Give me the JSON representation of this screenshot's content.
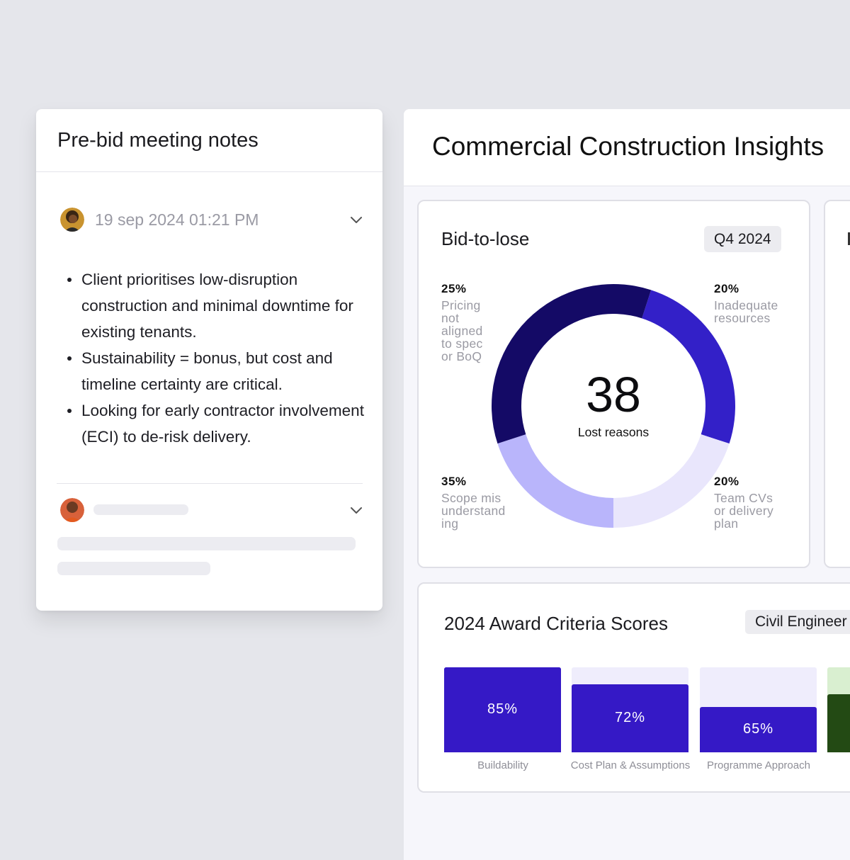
{
  "notes": {
    "title": "Pre-bid meeting notes",
    "entry1": {
      "timestamp": "19 sep 2024 01:21 PM",
      "bullets": [
        "Client prioritises low-disruption construction and minimal downtime for existing tenants.",
        "Sustainability = bonus, but cost and timeline certainty are critical.",
        "Looking for early contractor involvement (ECI) to de-risk delivery."
      ]
    }
  },
  "insights": {
    "title": "Commercial Construction Insights",
    "donut": {
      "title": "Bid-to-lose",
      "period": "Q4 2024",
      "center_value": "38",
      "center_label": "Lost reasons"
    },
    "bars": {
      "title": "2024 Award Criteria Scores",
      "filter": "Civil Engineer"
    }
  },
  "chart_data": [
    {
      "type": "pie",
      "title": "Bid-to-lose",
      "slices": [
        {
          "label": "Pricing not aligned to spec or BoQ",
          "value": 25,
          "display": "25%",
          "color": "#3320c8"
        },
        {
          "label": "Inadequate resources",
          "value": 20,
          "display": "20%",
          "color": "#e9e6fc"
        },
        {
          "label": "Team CVs or delivery plan",
          "value": 20,
          "display": "20%",
          "color": "#b9b5fb"
        },
        {
          "label": "Scope misunderstanding",
          "value": 35,
          "display": "35%",
          "color": "#140a66"
        }
      ]
    },
    {
      "type": "bar",
      "title": "2024 Award Criteria Scores",
      "categories": [
        "Buildability",
        "Cost Plan & Assumptions",
        "Programme Approach"
      ],
      "values": [
        85,
        72,
        65
      ],
      "labels": [
        "85%",
        "72%",
        "65%"
      ],
      "ylim": [
        0,
        100
      ],
      "colors": {
        "fill": "#3519c6",
        "track": "#efedfc",
        "extra_fill": "#234a14",
        "extra_track": "#d9efd0"
      }
    }
  ]
}
